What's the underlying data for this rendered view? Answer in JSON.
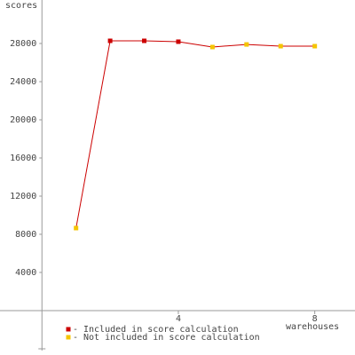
{
  "chart_data": {
    "type": "line",
    "y_label": "scores",
    "x_label": "warehouses",
    "x": [
      1,
      2,
      3,
      4,
      5,
      6,
      7,
      8
    ],
    "line_color": "#cc0000",
    "series": [
      {
        "name": "Included in score calculation",
        "color": "#cc0000",
        "values": [
          null,
          28280,
          28280,
          28190,
          null,
          null,
          null,
          null
        ]
      },
      {
        "name": "Not included in score calculation",
        "color": "#f5c400",
        "values": [
          8650,
          null,
          null,
          null,
          27630,
          27900,
          27720,
          27720
        ]
      }
    ],
    "xlim": [
      -1.23,
      9.18
    ],
    "ylim": [
      -4190,
      32560
    ],
    "xticks": [
      4,
      8
    ],
    "yticks": [
      4000,
      8000,
      12000,
      16000,
      20000,
      24000,
      28000
    ],
    "grid": false
  }
}
